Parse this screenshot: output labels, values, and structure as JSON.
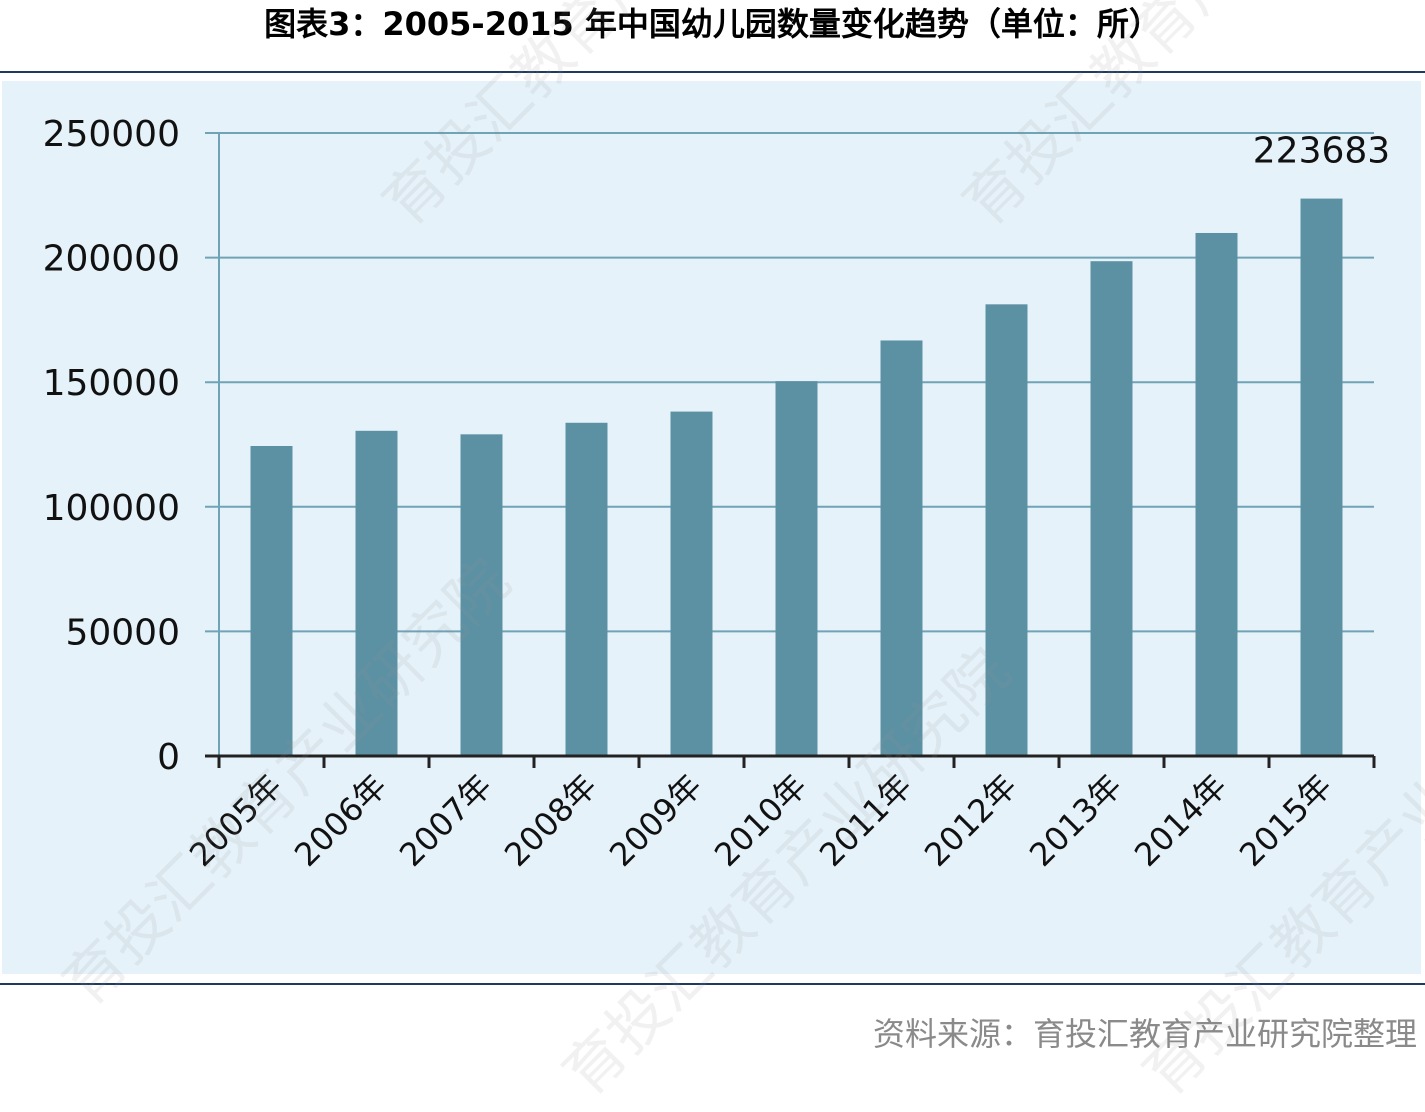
{
  "header": {
    "title": "图表3：2005-2015 年中国幼儿园数量变化趋势（单位：所）"
  },
  "footer": {
    "source": "资料来源：育投汇教育产业研究院整理"
  },
  "watermark": {
    "text": "育投汇教育产业研究院"
  },
  "colors": {
    "bar": "#5c91a4",
    "grid": "#6fa3b5",
    "axis": "#222222",
    "panel": "#e6f2fa"
  },
  "chart_data": {
    "type": "bar",
    "title": "图表3：2005-2015 年中国幼儿园数量变化趋势（单位：所）",
    "categories": [
      "2005年",
      "2006年",
      "2007年",
      "2008年",
      "2009年",
      "2010年",
      "2011年",
      "2012年",
      "2013年",
      "2014年",
      "2015年"
    ],
    "values": [
      124402,
      130495,
      129086,
      133722,
      138209,
      150420,
      166750,
      181251,
      198553,
      209881,
      223683
    ],
    "data_labels": [
      {
        "category": "2015年",
        "text": "223683"
      }
    ],
    "ylim": [
      0,
      250000
    ],
    "yticks": [
      0,
      50000,
      100000,
      150000,
      200000,
      250000
    ],
    "ytick_labels": [
      "0",
      "50000",
      "100000",
      "150000",
      "200000",
      "250000"
    ],
    "grid": true,
    "legend": "none",
    "xlabel": "",
    "ylabel": ""
  }
}
